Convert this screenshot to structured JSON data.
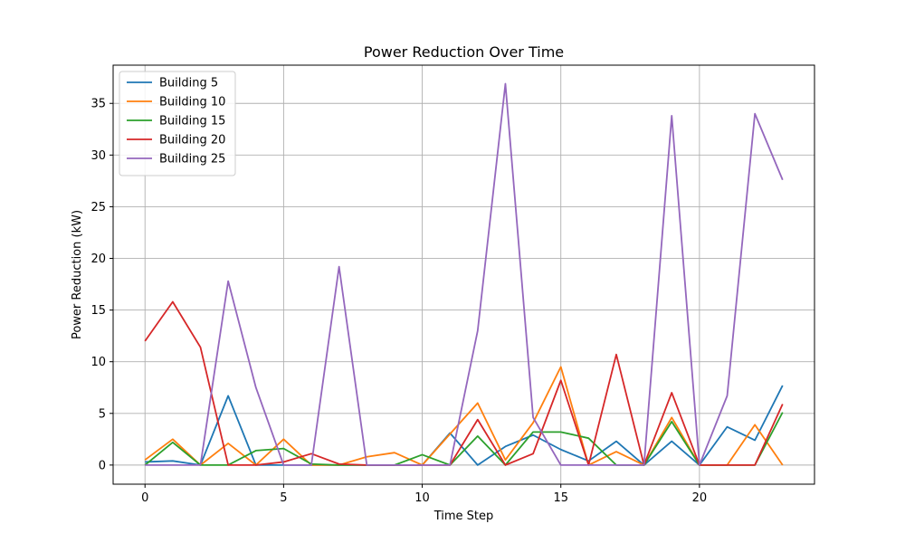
{
  "chart_data": {
    "type": "line",
    "title": "Power Reduction Over Time",
    "xlabel": "Time Step",
    "ylabel": "Power Reduction (kW)",
    "xlim": [
      -1.15,
      24.15
    ],
    "ylim": [
      -1.85,
      38.7
    ],
    "xticks": [
      0,
      5,
      10,
      15,
      20
    ],
    "yticks": [
      0,
      5,
      10,
      15,
      20,
      25,
      30,
      35
    ],
    "grid": true,
    "legend_position": "upper-left",
    "x": [
      0,
      1,
      2,
      3,
      4,
      5,
      6,
      7,
      8,
      9,
      10,
      11,
      12,
      13,
      14,
      15,
      16,
      17,
      18,
      19,
      20,
      21,
      22,
      23
    ],
    "series": [
      {
        "name": "Building 5",
        "color": "#1f77b4",
        "values": [
          0.3,
          0.4,
          0.0,
          6.7,
          0.0,
          0.0,
          0.0,
          0.0,
          0.0,
          0.0,
          0.0,
          3.1,
          0.0,
          1.8,
          2.9,
          1.5,
          0.4,
          2.3,
          0.0,
          2.3,
          0.0,
          3.7,
          2.4,
          7.7
        ]
      },
      {
        "name": "Building 10",
        "color": "#ff7f0e",
        "values": [
          0.5,
          2.5,
          0.0,
          2.1,
          0.0,
          2.5,
          0.0,
          0.0,
          0.8,
          1.2,
          0.0,
          3.0,
          6.0,
          0.5,
          4.1,
          9.5,
          0.0,
          1.3,
          0.0,
          4.6,
          0.0,
          0.0,
          3.9,
          0.0
        ]
      },
      {
        "name": "Building 15",
        "color": "#2ca02c",
        "values": [
          0.0,
          2.2,
          0.0,
          0.0,
          1.4,
          1.6,
          0.1,
          0.0,
          0.0,
          0.0,
          1.0,
          0.0,
          2.8,
          0.0,
          3.2,
          3.2,
          2.6,
          0.0,
          0.0,
          4.2,
          0.0,
          0.0,
          0.0,
          5.1
        ]
      },
      {
        "name": "Building 20",
        "color": "#d62728",
        "values": [
          12.0,
          15.8,
          11.4,
          0.0,
          0.0,
          0.3,
          1.1,
          0.1,
          0.0,
          0.0,
          0.0,
          0.0,
          4.4,
          0.0,
          1.1,
          8.2,
          0.0,
          10.7,
          0.0,
          7.0,
          0.0,
          0.0,
          0.0,
          5.9
        ]
      },
      {
        "name": "Building 25",
        "color": "#9467bd",
        "values": [
          0.0,
          0.0,
          0.0,
          17.8,
          7.5,
          0.0,
          0.0,
          19.2,
          0.0,
          0.0,
          0.0,
          0.0,
          13.0,
          36.9,
          4.6,
          0.0,
          0.0,
          0.0,
          0.0,
          33.8,
          0.0,
          6.7,
          34.0,
          27.6
        ]
      }
    ]
  }
}
